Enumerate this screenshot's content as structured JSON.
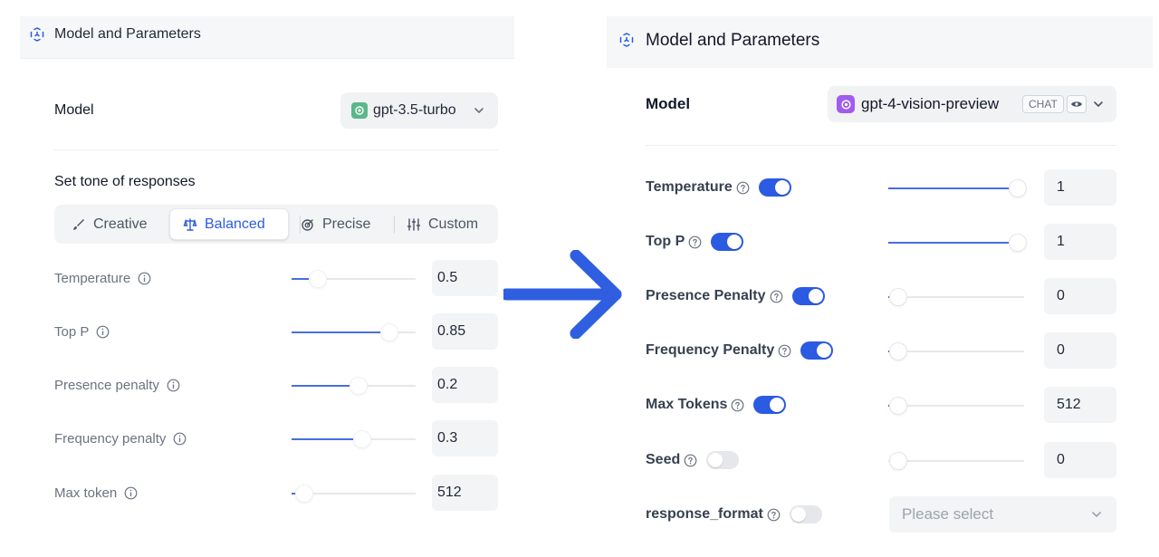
{
  "left_panel": {
    "header": {
      "title": "Model and Parameters"
    },
    "model": {
      "label": "Model",
      "name": "gpt-3.5-turbo"
    },
    "tone": {
      "label": "Set tone of responses",
      "options": [
        {
          "label": "Creative"
        },
        {
          "label": "Balanced",
          "selected": true
        },
        {
          "label": "Precise"
        },
        {
          "label": "Custom"
        }
      ]
    },
    "params": [
      {
        "label": "Temperature",
        "value": "0.5",
        "level": 0.21
      },
      {
        "label": "Top P",
        "value": "0.85",
        "level": 0.79
      },
      {
        "label": "Presence penalty",
        "value": "0.2",
        "level": 0.54
      },
      {
        "label": "Frequency penalty",
        "value": "0.3",
        "level": 0.57
      },
      {
        "label": "Max token",
        "value": "512",
        "level": 0.1
      }
    ]
  },
  "right_panel": {
    "header": {
      "title": "Model and Parameters"
    },
    "model": {
      "label": "Model",
      "name": "gpt-4-vision-preview",
      "badge": "CHAT"
    },
    "params": [
      {
        "label": "Temperature",
        "enabled": true,
        "value": "1",
        "level": 0.95
      },
      {
        "label": "Top P",
        "enabled": true,
        "value": "1",
        "level": 0.95
      },
      {
        "label": "Presence Penalty",
        "enabled": true,
        "value": "0",
        "level": 0.07
      },
      {
        "label": "Frequency Penalty",
        "enabled": true,
        "value": "0",
        "level": 0.07
      },
      {
        "label": "Max Tokens",
        "enabled": true,
        "value": "512",
        "level": 0.07
      },
      {
        "label": "Seed",
        "enabled": false,
        "value": "0",
        "level": 0.07
      }
    ],
    "response_format": {
      "label": "response_format",
      "enabled": false,
      "placeholder": "Please select"
    }
  },
  "colors": {
    "accent": "#2b5be3",
    "slider_fill": "#4a6ee0",
    "openai_green": "#5ab88a",
    "openai_purple": "#a05cf0"
  }
}
